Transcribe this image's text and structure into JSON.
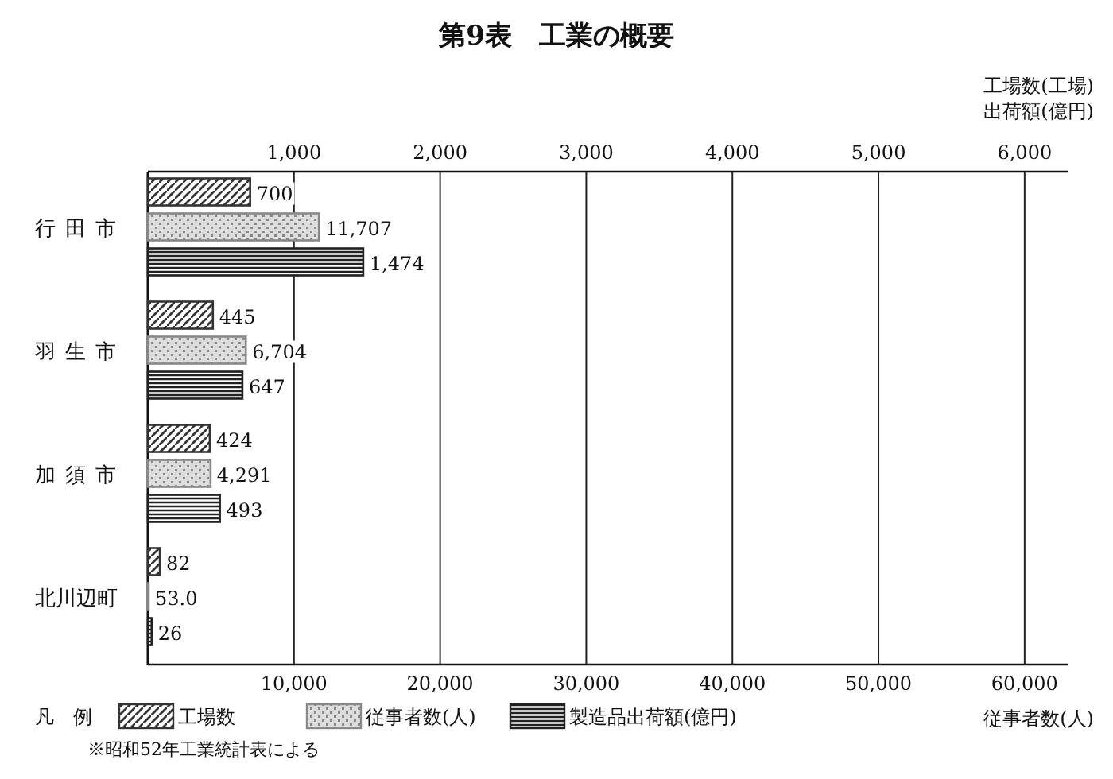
{
  "chart_data": {
    "type": "bar",
    "orientation": "horizontal",
    "title": "第9表　工業の概要",
    "categories": [
      "行田市",
      "羽生市",
      "加須市",
      "北川辺町"
    ],
    "series": [
      {
        "name": "工場数",
        "color": "#333333",
        "axis": "x2",
        "values": [
          700,
          445,
          424,
          82
        ],
        "value_labels": [
          "700",
          "445",
          "424",
          "82"
        ]
      },
      {
        "name": "従事者数(人)",
        "color": "#888888",
        "values": [
          11707,
          6704,
          4291,
          53
        ],
        "value_labels": [
          "11,707",
          "6,704",
          "4,291",
          "53.0"
        ]
      },
      {
        "name": "製造品出荷額(億円)",
        "color": "#222222",
        "axis": "x2",
        "values": [
          1474,
          647,
          493,
          26
        ],
        "value_labels": [
          "1,474",
          "647",
          "493",
          "26"
        ]
      }
    ],
    "xlim": [
      0,
      63000
    ],
    "xticks": [
      {
        "value": 10000,
        "label": "10,000"
      },
      {
        "value": 20000,
        "label": "20,000"
      },
      {
        "value": 30000,
        "label": "30,000"
      },
      {
        "value": 40000,
        "label": "40,000"
      },
      {
        "value": 50000,
        "label": "50,000"
      },
      {
        "value": 60000,
        "label": "60,000"
      }
    ],
    "x2lim": [
      0,
      6300
    ],
    "x2ticks": [
      {
        "value": 1000,
        "label": "1,000"
      },
      {
        "value": 2000,
        "label": "2,000"
      },
      {
        "value": 3000,
        "label": "3,000"
      },
      {
        "value": 4000,
        "label": "4,000"
      },
      {
        "value": 5000,
        "label": "5,000"
      },
      {
        "value": 6000,
        "label": "6,000"
      }
    ],
    "xlabel": "従事者数(人)",
    "x2label": "工場数(工場)\n出荷額(億円)",
    "legend_title": "凡　例",
    "legend": "bottom",
    "grid": "x",
    "annotations": [
      "※昭和52年工業統計表による"
    ]
  }
}
